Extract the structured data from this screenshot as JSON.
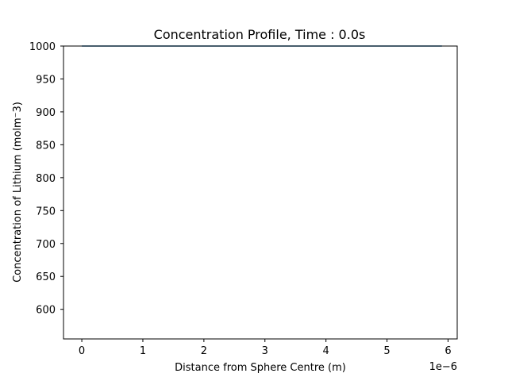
{
  "chart_data": {
    "type": "line",
    "title": "Concentration Profile, Time : 0.0s",
    "xlabel": "Distance from Sphere Centre (m)",
    "ylabel": "Concentration of Lithium (molm⁻3)",
    "x_offset_label": "1e−6",
    "xlim": [
      -0.3,
      6.15
    ],
    "ylim": [
      555,
      1000
    ],
    "x_ticks": [
      0,
      1,
      2,
      3,
      4,
      5,
      6
    ],
    "y_ticks": [
      600,
      650,
      700,
      750,
      800,
      850,
      900,
      950,
      1000
    ],
    "grid": false,
    "series": [
      {
        "x": [
          0,
          5.9
        ],
        "y": [
          1000,
          1000
        ],
        "color": "#1f77b4"
      }
    ]
  }
}
